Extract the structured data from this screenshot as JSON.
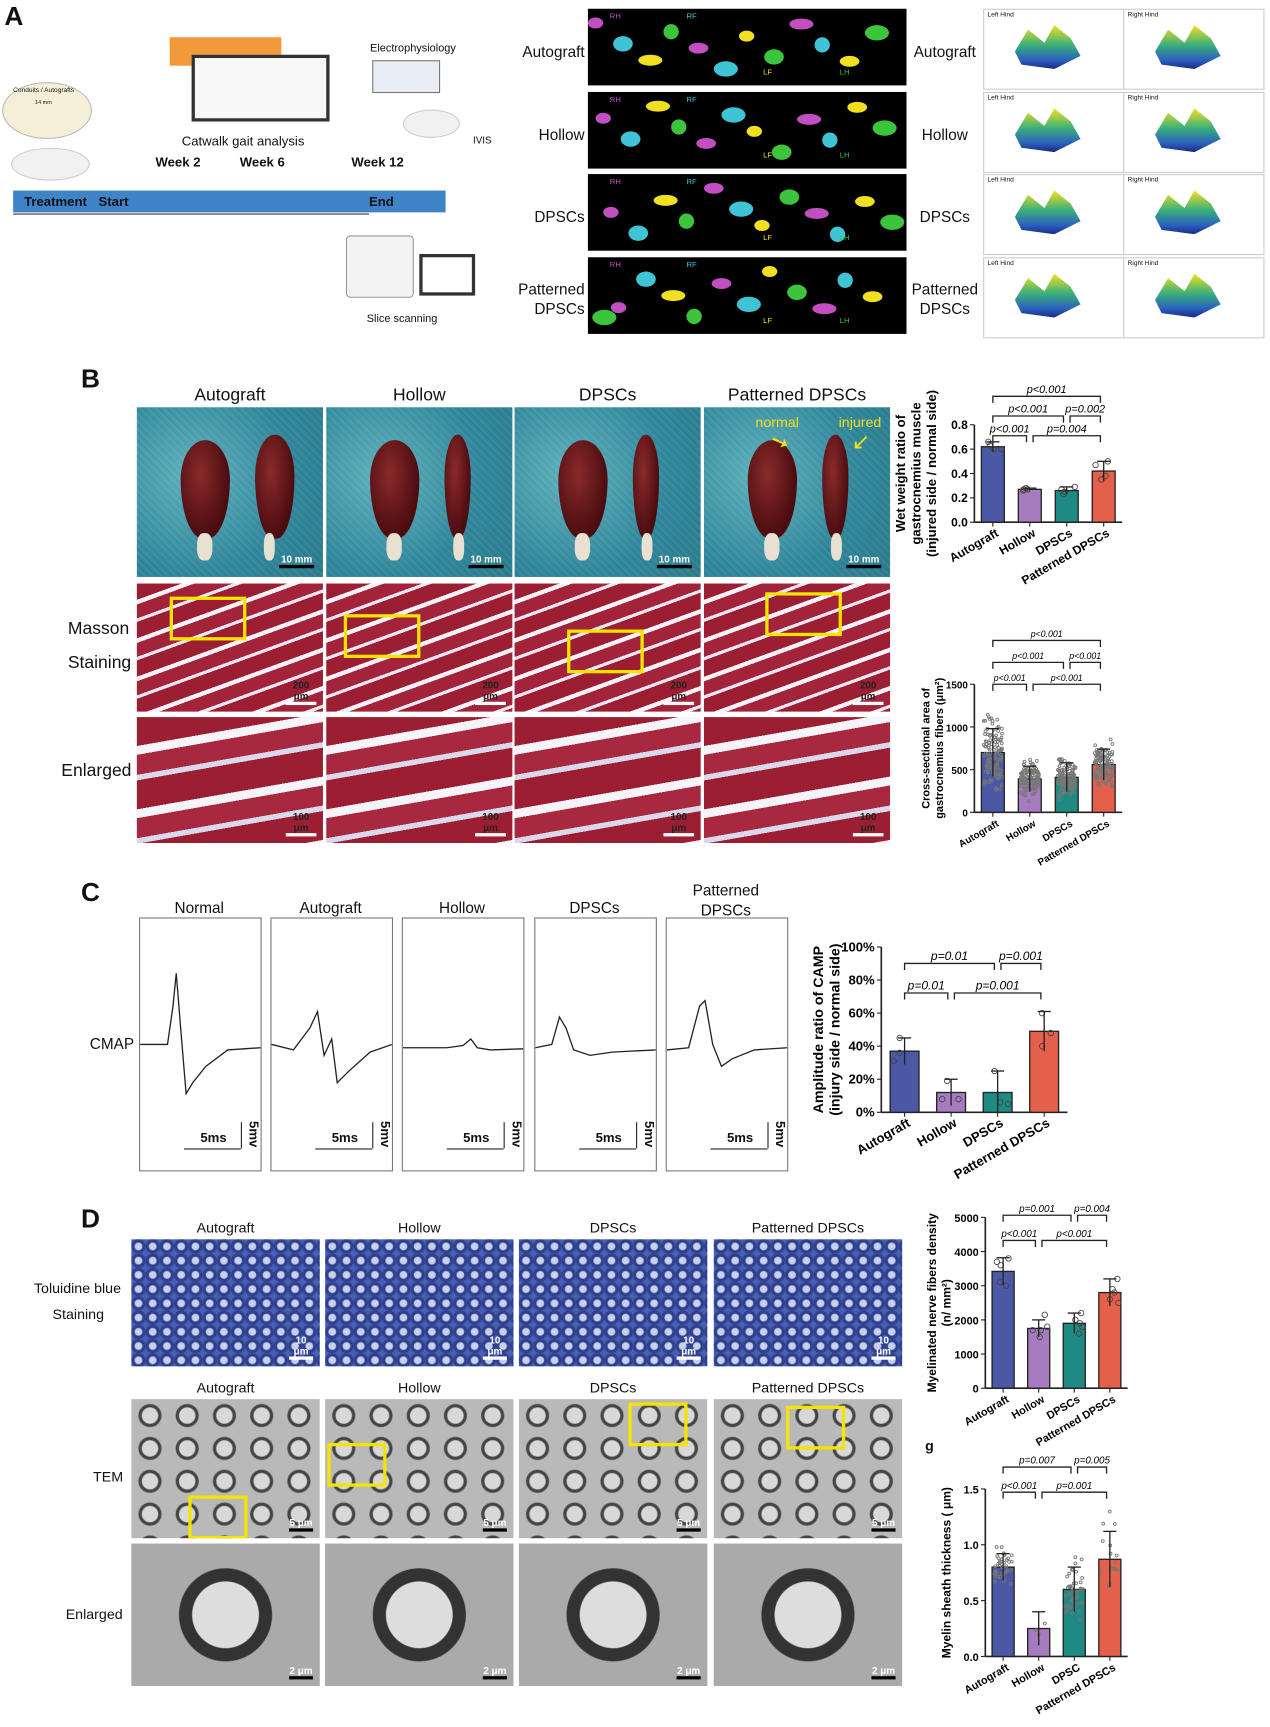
{
  "panel_labels": {
    "a": "A",
    "b": "B",
    "c": "C",
    "d": "D",
    "g": "g"
  },
  "panelA": {
    "timeline": {
      "conduit_label": "Conduits / Autografts",
      "conduit_length": "14 mm",
      "catwalk": "Catwalk gait analysis",
      "electrophysiology": "Electrophysiology",
      "ivis": "IVIS",
      "week2": "Week 2",
      "week6": "Week 6",
      "week12": "Week 12",
      "treatment": "Treatment",
      "start": "Start",
      "end": "End",
      "slice_scanning": "Slice scanning"
    },
    "groups_left": [
      "Autograft",
      "Hollow",
      "DPSCs",
      "Patterned\nDPSCs"
    ],
    "groups_right": [
      "Autograft",
      "Hollow",
      "DPSCs",
      "Patterned\nDPSCs"
    ],
    "paw_labels": {
      "rh": "RH",
      "rf": "RF",
      "lf": "LF",
      "lh": "LH"
    },
    "plot_headers": {
      "left": "Left Hind",
      "right": "Right Hind"
    },
    "paw_colors": {
      "rh": "#c24fc2",
      "rf": "#3ec4d4",
      "lf": "#f0e020",
      "lh": "#3cc43c"
    }
  },
  "panelB": {
    "columns": [
      "Autograft",
      "Hollow",
      "DPSCs",
      "Patterned DPSCs"
    ],
    "rows": {
      "masson1": "Masson",
      "masson2": "Staining",
      "enlarged": "Enlarged"
    },
    "annotations": {
      "normal": "normal",
      "injured": "injured"
    },
    "scale": {
      "photo": "10 mm",
      "masson": "200 μm",
      "enlarged": "100 μm"
    }
  },
  "panelC": {
    "columns": [
      "Normal",
      "Autograft",
      "Hollow",
      "DPSCs",
      "Patterned\nDPSCs"
    ],
    "row_label": "CMAP",
    "scale": {
      "time": "5ms",
      "volt": "5mv"
    }
  },
  "panelD": {
    "columns": [
      "Autograft",
      "Hollow",
      "DPSCs",
      "Patterned DPSCs"
    ],
    "rows": {
      "tol1": "Toluidine blue",
      "tol2": "Staining",
      "tem": "TEM",
      "enlarged": "Enlarged"
    },
    "scale": {
      "tol": "10 μm",
      "tem": "5 μm",
      "enlarged": "2 μm"
    }
  },
  "colors": {
    "autograft": "#4a58a6",
    "hollow": "#a67bc0",
    "dpscs": "#1e8a83",
    "patterned": "#e5604a"
  },
  "chart_data": [
    {
      "id": "b1",
      "type": "bar",
      "ylabel": [
        "Wet weight ratio of",
        "gastrocnemius muscle",
        "(injured side / normal side)"
      ],
      "categories": [
        "Autograft",
        "Hollow",
        "DPSCs",
        "Patterned DPSCs"
      ],
      "values": [
        0.62,
        0.27,
        0.26,
        0.42
      ],
      "errors": [
        0.04,
        0.01,
        0.03,
        0.08
      ],
      "points": [
        [
          0.66,
          0.6,
          0.63,
          0.6
        ],
        [
          0.28,
          0.27,
          0.26,
          0.27
        ],
        [
          0.23,
          0.27,
          0.29,
          0.25
        ],
        [
          0.35,
          0.47,
          0.5,
          0.38
        ]
      ],
      "ylim": [
        0,
        0.8
      ],
      "yticks": [
        0,
        0.2,
        0.4,
        0.6,
        0.8
      ],
      "ytick_labels": [
        "0.0",
        "0.2",
        "0.4",
        "0.6",
        "0.8"
      ],
      "brackets": [
        {
          "from": 0,
          "to": 1,
          "level": 0,
          "label": "p<0.001"
        },
        {
          "from": 1,
          "to": 3,
          "level": 0,
          "label": "p=0.004"
        },
        {
          "from": 0,
          "to": 2,
          "level": 1,
          "label": "p<0.001"
        },
        {
          "from": 2,
          "to": 3,
          "level": 1,
          "label": "p=0.002"
        },
        {
          "from": 0,
          "to": 3,
          "level": 2,
          "label": "p<0.001"
        }
      ]
    },
    {
      "id": "b2",
      "type": "bar",
      "ylabel": [
        "Cross-sectional area of",
        "gastrocnemius fibers (μm²)"
      ],
      "categories": [
        "Autograft",
        "Hollow",
        "DPSCs",
        "Patterned DPSCs"
      ],
      "values": [
        700,
        390,
        410,
        560
      ],
      "errors": [
        280,
        150,
        170,
        180
      ],
      "n_points": 120,
      "ylim": [
        0,
        1500
      ],
      "yticks": [
        0,
        500,
        1000,
        1500
      ],
      "ytick_labels": [
        "0",
        "500",
        "1000",
        "1500"
      ],
      "brackets": [
        {
          "from": 0,
          "to": 1,
          "level": 0,
          "label": "p<0.001"
        },
        {
          "from": 1,
          "to": 3,
          "level": 0,
          "label": "p<0.001"
        },
        {
          "from": 0,
          "to": 2,
          "level": 1,
          "label": "p<0.001"
        },
        {
          "from": 2,
          "to": 3,
          "level": 1,
          "label": "p<0.001"
        },
        {
          "from": 0,
          "to": 3,
          "level": 2,
          "label": "p<0.001"
        }
      ]
    },
    {
      "id": "c1",
      "type": "bar",
      "ylabel": [
        "Amplitude ratio of CAMP",
        "(injury side / normal side)"
      ],
      "categories": [
        "Autograft",
        "Hollow",
        "DPSCs",
        "Patterned DPSCs"
      ],
      "values": [
        37,
        12,
        12,
        49
      ],
      "errors": [
        8,
        8,
        13,
        12
      ],
      "points": [
        [
          45,
          36,
          31
        ],
        [
          19,
          8,
          8
        ],
        [
          25,
          5,
          6
        ],
        [
          60,
          48,
          40
        ]
      ],
      "ylim": [
        0,
        100
      ],
      "yticks": [
        0,
        20,
        40,
        60,
        80,
        100
      ],
      "ytick_labels": [
        "0%",
        "20%",
        "40%",
        "60%",
        "80%",
        "100%"
      ],
      "brackets": [
        {
          "from": 0,
          "to": 1,
          "level": 0,
          "label": "p=0.01"
        },
        {
          "from": 1,
          "to": 3,
          "level": 0,
          "label": "p=0.001"
        },
        {
          "from": 0,
          "to": 2,
          "level": 1,
          "label": "p=0.01"
        },
        {
          "from": 2,
          "to": 3,
          "level": 1,
          "label": "p=0.001"
        }
      ]
    },
    {
      "id": "d1",
      "type": "bar",
      "ylabel": [
        "Myelinated  nerve  fibers density",
        "(n/ mm²)"
      ],
      "categories": [
        "Autograft",
        "Hollow",
        "DPSCs",
        "Patterned DPSCs"
      ],
      "values": [
        3420,
        1750,
        1900,
        2800
      ],
      "errors": [
        400,
        250,
        300,
        400
      ],
      "points": [
        [
          3800,
          3700,
          3600,
          3100,
          3000
        ],
        [
          2150,
          1800,
          1700,
          1500,
          1700
        ],
        [
          2200,
          1900,
          1800,
          1600,
          2000
        ],
        [
          3200,
          2900,
          2800,
          2500,
          2600
        ]
      ],
      "ylim": [
        0,
        5000
      ],
      "yticks": [
        0,
        1000,
        2000,
        3000,
        4000,
        5000
      ],
      "ytick_labels": [
        "0",
        "1000",
        "2000",
        "3000",
        "4000",
        "5000"
      ],
      "brackets": [
        {
          "from": 0,
          "to": 1,
          "level": 0,
          "label": "p<0.001"
        },
        {
          "from": 1,
          "to": 3,
          "level": 0,
          "label": "p<0.001"
        },
        {
          "from": 0,
          "to": 2,
          "level": 1,
          "label": "p=0.001"
        },
        {
          "from": 2,
          "to": 3,
          "level": 1,
          "label": "p=0.004"
        }
      ]
    },
    {
      "id": "g1",
      "type": "bar",
      "ylabel": [
        "Myelin sheath thickness ( μm)"
      ],
      "categories": [
        "Autograft",
        "Hollow",
        "DPSC",
        "Patterned DPSCs"
      ],
      "values": [
        0.8,
        0.25,
        0.6,
        0.87
      ],
      "errors": [
        0.12,
        0.15,
        0.2,
        0.25
      ],
      "n_points": 40,
      "n_points_list": [
        40,
        3,
        45,
        15
      ],
      "ylim": [
        0,
        1.5
      ],
      "yticks": [
        0,
        0.5,
        1.0,
        1.5
      ],
      "ytick_labels": [
        "0.0",
        "0.5",
        "1.0",
        "1.5"
      ],
      "brackets": [
        {
          "from": 0,
          "to": 1,
          "level": 0,
          "label": "p<0.001"
        },
        {
          "from": 1,
          "to": 3,
          "level": 0,
          "label": "p=0.001"
        },
        {
          "from": 0,
          "to": 2,
          "level": 1,
          "label": "p=0.007"
        },
        {
          "from": 2,
          "to": 3,
          "level": 1,
          "label": "p=0.005"
        }
      ]
    }
  ]
}
